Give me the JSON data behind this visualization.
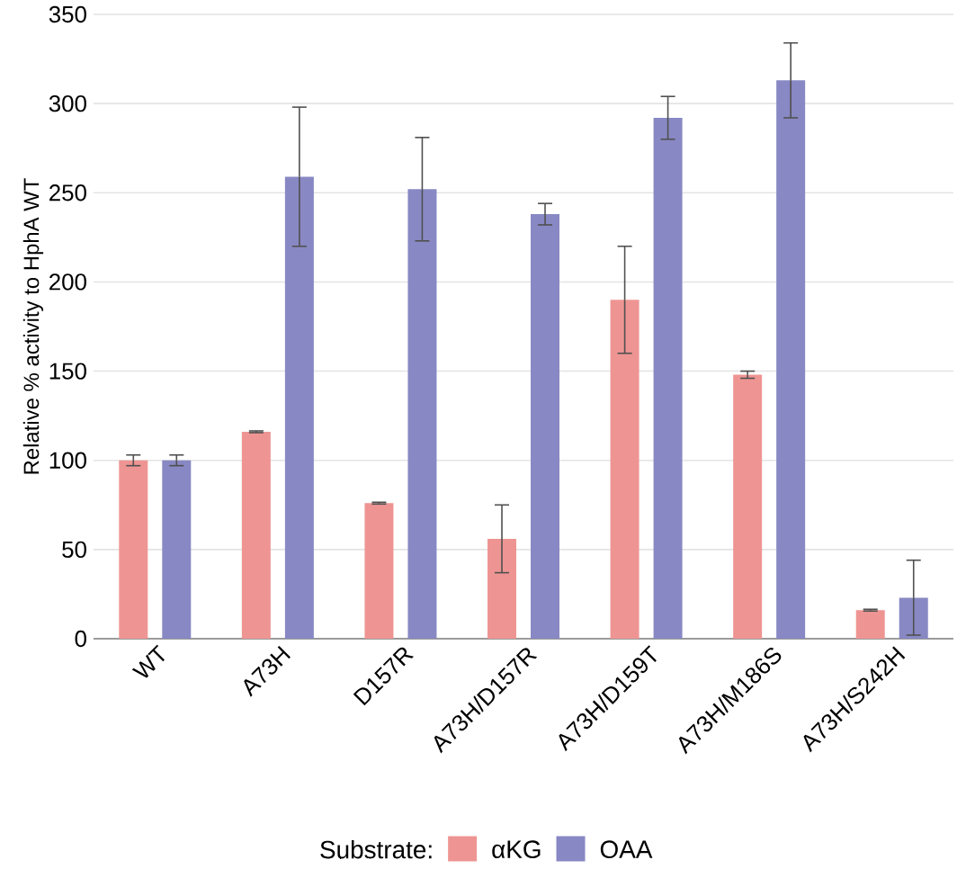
{
  "chart_data": {
    "type": "bar",
    "ylabel": "Relative % activity to HphA WT",
    "legend_title": "Substrate:",
    "categories": [
      "WT",
      "A73H",
      "D157R",
      "A73H/D157R",
      "A73H/D159T",
      "A73H/M186S",
      "A73H/S242H"
    ],
    "series": [
      {
        "name": "αKG",
        "color": "#ee9593",
        "values": [
          100,
          116,
          76,
          56,
          190,
          148,
          16
        ],
        "errors": [
          3,
          0.5,
          0.5,
          19,
          30,
          2,
          0.5
        ]
      },
      {
        "name": "OAA",
        "color": "#8888c4",
        "values": [
          100,
          259,
          252,
          238,
          292,
          313,
          23
        ],
        "errors": [
          3,
          39,
          29,
          6,
          12,
          21,
          21
        ]
      }
    ],
    "ylim": [
      0,
      350
    ],
    "yticks": [
      0,
      50,
      100,
      150,
      200,
      250,
      300,
      350
    ],
    "grid": "y",
    "legend": "bottom"
  }
}
